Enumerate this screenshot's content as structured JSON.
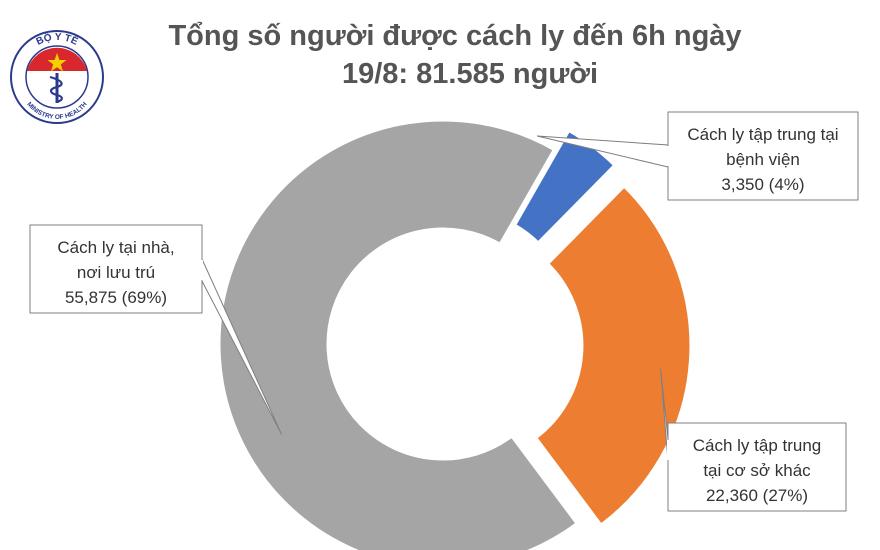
{
  "logo": {
    "top_text": "BỘ Y TẾ",
    "bottom_text": "MINISTRY OF HEALTH",
    "ring_color": "#2b3a8c",
    "accent_color": "#d9272e"
  },
  "chart_data": {
    "type": "pie",
    "title_lines": [
      "Tổng số người được cách ly đến 6h ngày",
      "19/8: 81.585 người"
    ],
    "slices": [
      {
        "key": "hospital",
        "value": 3350,
        "percent": 4,
        "color": "#4472c4",
        "label_lines": [
          "Cách ly tập trung tại",
          "bệnh viện",
          "3,350 (4%)"
        ]
      },
      {
        "key": "facility",
        "value": 22360,
        "percent": 27,
        "color": "#ed7d31",
        "label_lines": [
          "Cách ly tập trung",
          "tại cơ sở khác",
          "22,360 (27%)"
        ]
      },
      {
        "key": "home",
        "value": 55875,
        "percent": 69,
        "color": "#a5a5a5",
        "label_lines": [
          "Cách ly tại nhà,",
          "nơi lưu trú",
          "55,875 (69%)"
        ]
      }
    ]
  }
}
